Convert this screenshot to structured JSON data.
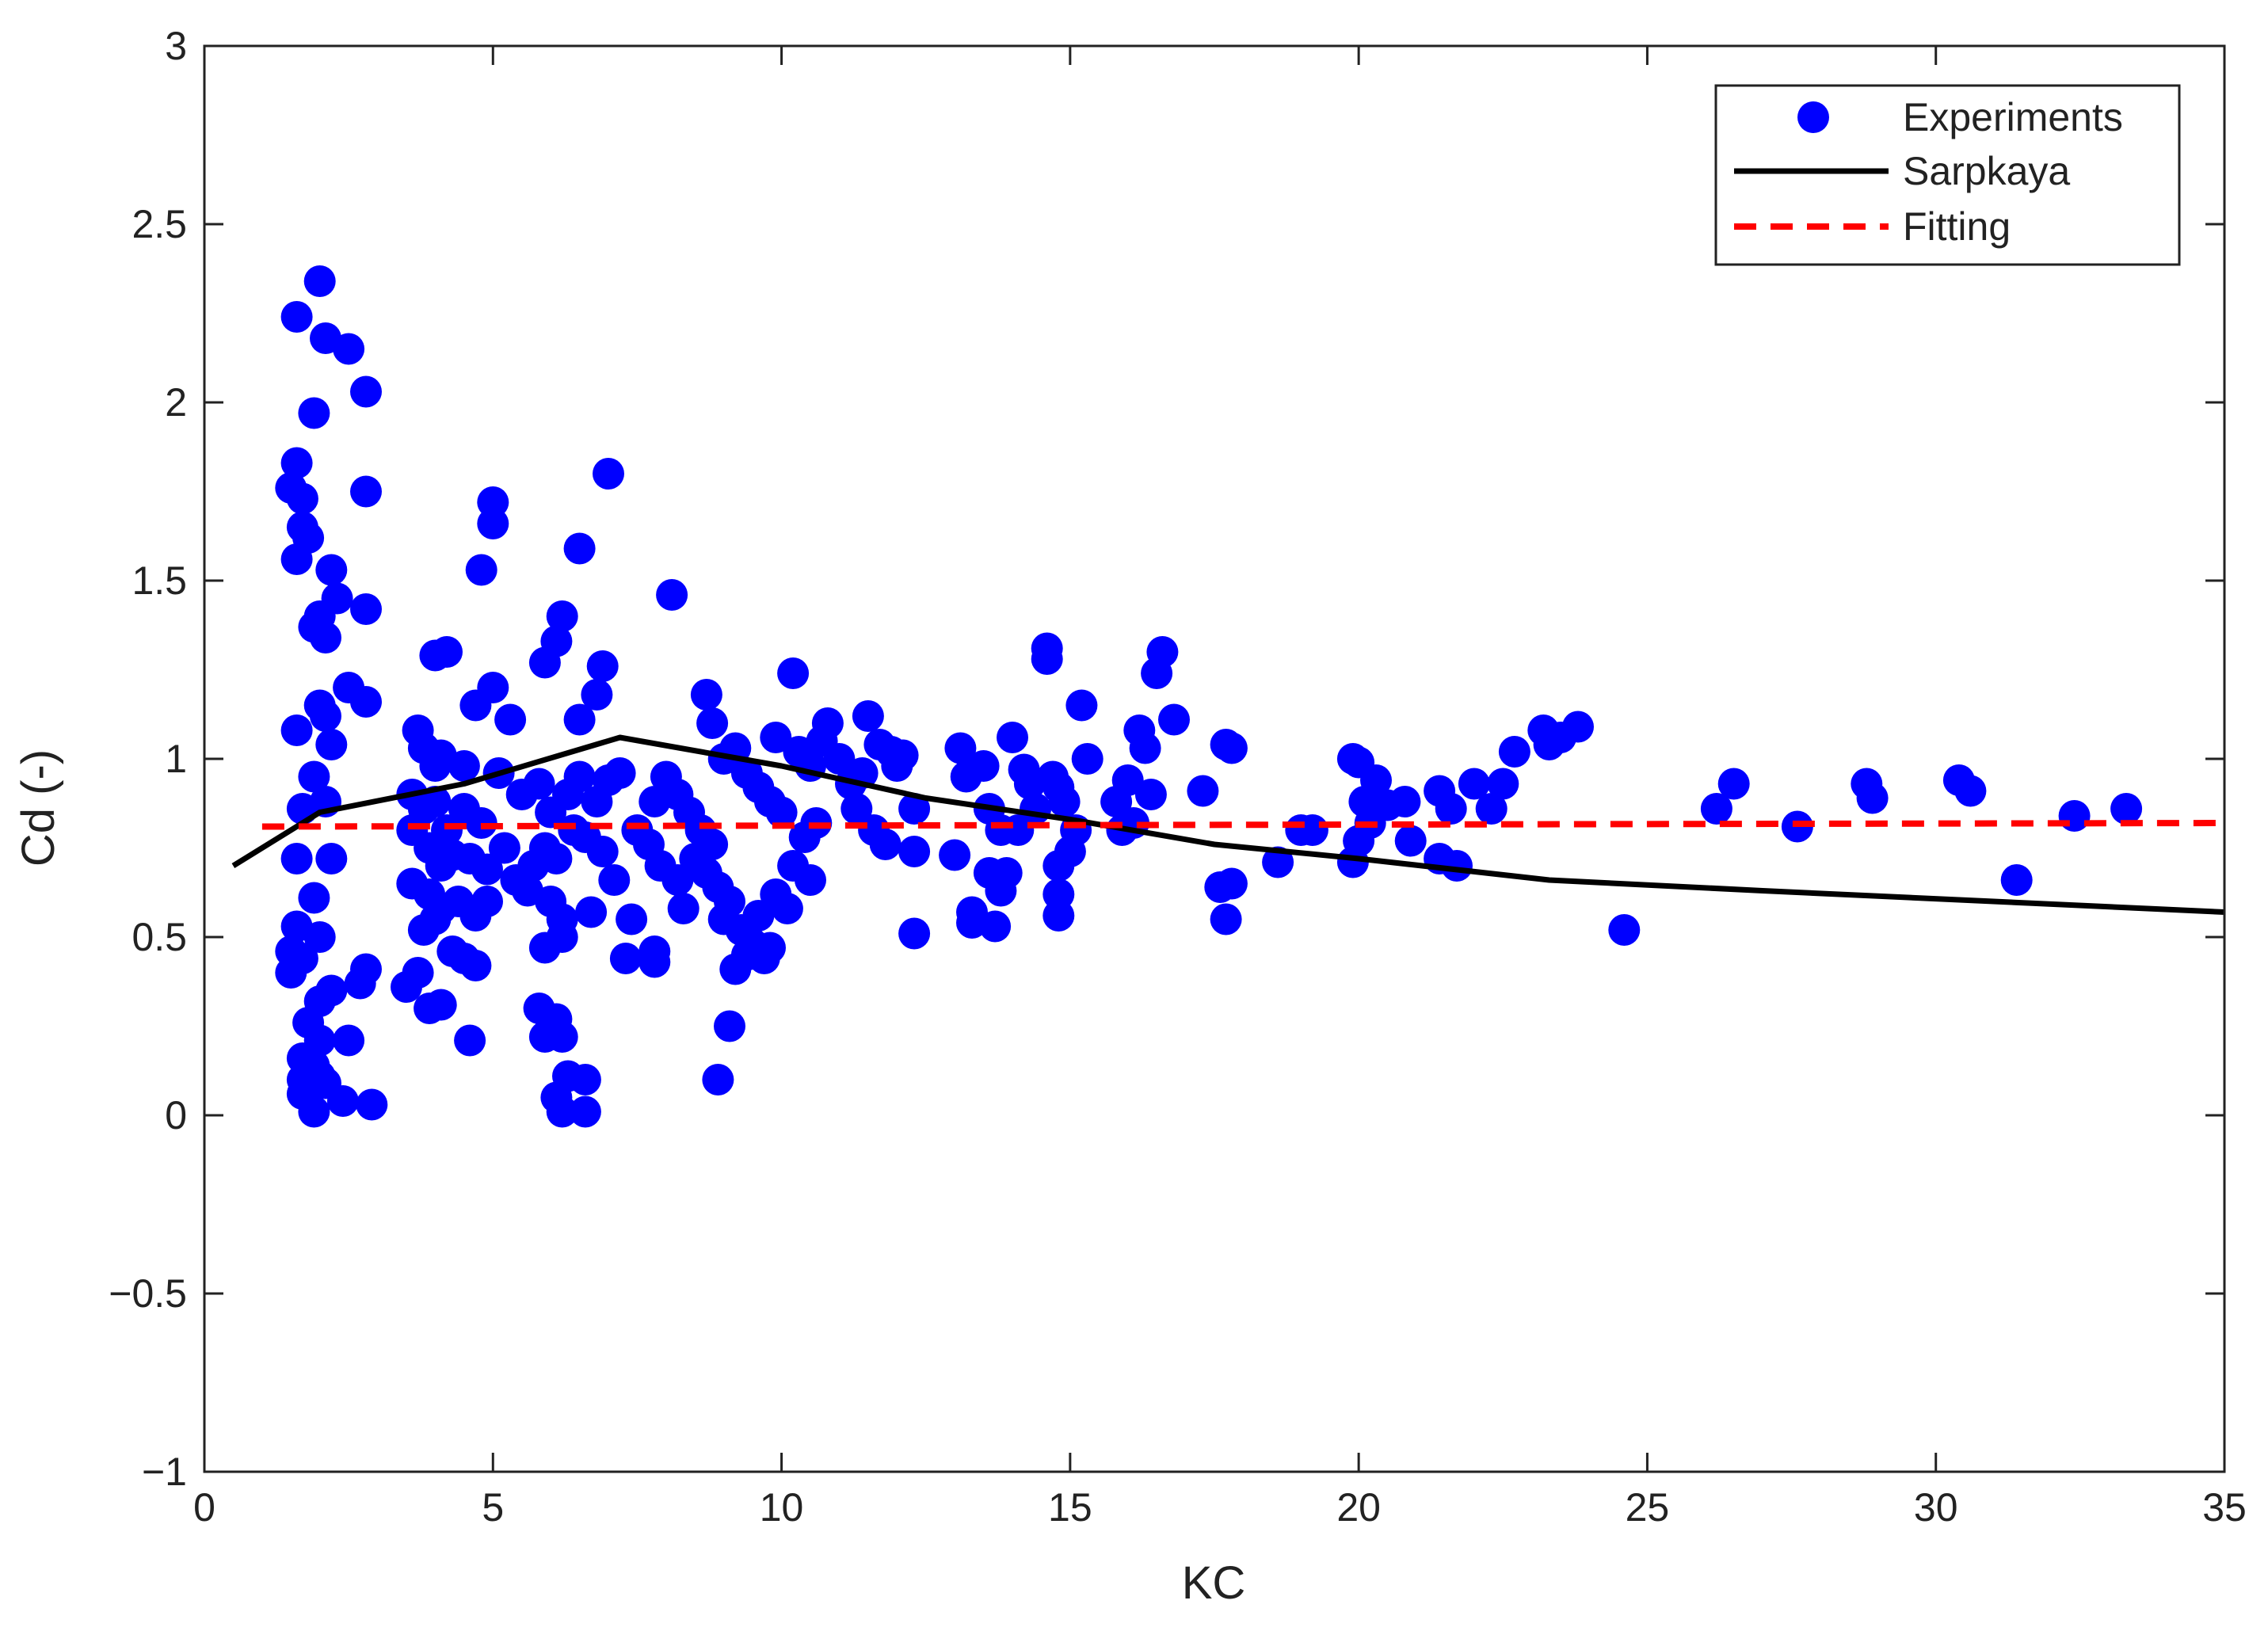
{
  "chart_data": {
    "type": "scatter",
    "title": "",
    "xlabel": "KC",
    "ylabel": "Cd (-)",
    "xlim": [
      0,
      35
    ],
    "ylim": [
      -1,
      3
    ],
    "grid": false,
    "legend_position": "top-right",
    "x_ticks": [
      0,
      5,
      10,
      15,
      20,
      25,
      30,
      35
    ],
    "x_tick_labels": [
      "0",
      "5",
      "10",
      "15",
      "20",
      "25",
      "30",
      "35"
    ],
    "y_ticks": [
      -1,
      -0.5,
      0,
      0.5,
      1,
      1.5,
      2,
      2.5,
      3
    ],
    "y_tick_labels": [
      "−1",
      "−0.5",
      "0",
      "0.5",
      "1",
      "1.5",
      "2",
      "2.5",
      "3"
    ],
    "series": [
      {
        "name": "Experiments",
        "kind": "scatter",
        "color": "#0000ff",
        "points": [
          [
            1.6,
            2.24
          ],
          [
            2.0,
            2.34
          ],
          [
            2.5,
            2.15
          ],
          [
            2.1,
            2.18
          ],
          [
            2.8,
            2.03
          ],
          [
            1.9,
            1.97
          ],
          [
            1.6,
            1.83
          ],
          [
            1.5,
            1.76
          ],
          [
            1.7,
            1.73
          ],
          [
            2.8,
            1.75
          ],
          [
            1.7,
            1.65
          ],
          [
            1.8,
            1.62
          ],
          [
            1.6,
            1.56
          ],
          [
            2.2,
            1.53
          ],
          [
            2.3,
            1.45
          ],
          [
            2.0,
            1.4
          ],
          [
            1.9,
            1.37
          ],
          [
            2.1,
            1.34
          ],
          [
            2.8,
            1.42
          ],
          [
            2.5,
            1.2
          ],
          [
            2.0,
            1.15
          ],
          [
            1.6,
            1.08
          ],
          [
            2.2,
            1.04
          ],
          [
            2.1,
            1.12
          ],
          [
            2.8,
            1.16
          ],
          [
            1.9,
            0.95
          ],
          [
            2.1,
            0.88
          ],
          [
            1.7,
            0.86
          ],
          [
            1.6,
            0.72
          ],
          [
            2.2,
            0.72
          ],
          [
            1.9,
            0.61
          ],
          [
            2.0,
            0.5
          ],
          [
            1.6,
            0.53
          ],
          [
            1.5,
            0.46
          ],
          [
            1.7,
            0.44
          ],
          [
            1.5,
            0.4
          ],
          [
            2.8,
            0.41
          ],
          [
            2.7,
            0.37
          ],
          [
            2.2,
            0.35
          ],
          [
            2.0,
            0.32
          ],
          [
            1.8,
            0.26
          ],
          [
            2.0,
            0.21
          ],
          [
            2.5,
            0.21
          ],
          [
            1.7,
            0.16
          ],
          [
            1.9,
            0.14
          ],
          [
            2.0,
            0.11
          ],
          [
            1.7,
            0.06
          ],
          [
            2.1,
            0.09
          ],
          [
            2.4,
            0.04
          ],
          [
            1.9,
            0.01
          ],
          [
            2.9,
            0.03
          ],
          [
            1.7,
            0.1
          ],
          [
            5.0,
            1.72
          ],
          [
            5.0,
            1.66
          ],
          [
            4.8,
            1.53
          ],
          [
            7.0,
            1.8
          ],
          [
            6.5,
            1.59
          ],
          [
            8.1,
            1.46
          ],
          [
            6.2,
            1.4
          ],
          [
            6.1,
            1.33
          ],
          [
            5.9,
            1.27
          ],
          [
            4.0,
            1.29
          ],
          [
            4.2,
            1.3
          ],
          [
            6.9,
            1.26
          ],
          [
            4.7,
            1.15
          ],
          [
            5.0,
            1.2
          ],
          [
            5.3,
            1.11
          ],
          [
            6.8,
            1.18
          ],
          [
            6.5,
            1.11
          ],
          [
            3.7,
            1.08
          ],
          [
            3.8,
            1.03
          ],
          [
            4.0,
            0.98
          ],
          [
            4.1,
            1.01
          ],
          [
            4.5,
            0.98
          ],
          [
            3.6,
            0.9
          ],
          [
            3.8,
            0.86
          ],
          [
            4.0,
            0.88
          ],
          [
            4.2,
            0.8
          ],
          [
            4.5,
            0.86
          ],
          [
            4.8,
            0.82
          ],
          [
            5.1,
            0.96
          ],
          [
            5.5,
            0.9
          ],
          [
            5.8,
            0.93
          ],
          [
            6.0,
            0.85
          ],
          [
            6.3,
            0.9
          ],
          [
            6.5,
            0.95
          ],
          [
            6.8,
            0.88
          ],
          [
            7.0,
            0.94
          ],
          [
            7.2,
            0.96
          ],
          [
            3.6,
            0.8
          ],
          [
            3.9,
            0.75
          ],
          [
            4.1,
            0.7
          ],
          [
            4.3,
            0.73
          ],
          [
            4.6,
            0.72
          ],
          [
            4.9,
            0.69
          ],
          [
            5.2,
            0.75
          ],
          [
            5.4,
            0.66
          ],
          [
            5.7,
            0.7
          ],
          [
            5.9,
            0.75
          ],
          [
            6.1,
            0.72
          ],
          [
            6.4,
            0.8
          ],
          [
            6.6,
            0.78
          ],
          [
            6.9,
            0.74
          ],
          [
            7.1,
            0.66
          ],
          [
            3.6,
            0.65
          ],
          [
            3.9,
            0.62
          ],
          [
            4.1,
            0.58
          ],
          [
            4.4,
            0.6
          ],
          [
            4.7,
            0.56
          ],
          [
            4.9,
            0.6
          ],
          [
            5.6,
            0.63
          ],
          [
            6.0,
            0.6
          ],
          [
            6.2,
            0.55
          ],
          [
            6.7,
            0.57
          ],
          [
            3.8,
            0.52
          ],
          [
            4.0,
            0.55
          ],
          [
            4.3,
            0.46
          ],
          [
            4.5,
            0.44
          ],
          [
            4.7,
            0.42
          ],
          [
            5.9,
            0.47
          ],
          [
            6.2,
            0.5
          ],
          [
            3.5,
            0.36
          ],
          [
            3.7,
            0.4
          ],
          [
            3.9,
            0.3
          ],
          [
            4.1,
            0.31
          ],
          [
            4.6,
            0.21
          ],
          [
            5.8,
            0.3
          ],
          [
            6.1,
            0.27
          ],
          [
            5.9,
            0.22
          ],
          [
            6.2,
            0.22
          ],
          [
            6.3,
            0.11
          ],
          [
            6.6,
            0.1
          ],
          [
            6.1,
            0.05
          ],
          [
            6.2,
            0.01
          ],
          [
            6.6,
            0.01
          ],
          [
            7.4,
            0.55
          ],
          [
            7.3,
            0.44
          ],
          [
            7.8,
            0.46
          ],
          [
            7.8,
            0.43
          ],
          [
            7.5,
            0.8
          ],
          [
            7.7,
            0.76
          ],
          [
            7.9,
            0.7
          ],
          [
            8.2,
            0.66
          ],
          [
            8.3,
            0.58
          ],
          [
            7.8,
            0.88
          ],
          [
            8.0,
            0.95
          ],
          [
            8.2,
            0.9
          ],
          [
            8.4,
            0.85
          ],
          [
            8.6,
            0.8
          ],
          [
            8.8,
            0.76
          ],
          [
            8.5,
            0.72
          ],
          [
            8.7,
            0.68
          ],
          [
            8.9,
            0.64
          ],
          [
            9.1,
            0.6
          ],
          [
            9.0,
            0.55
          ],
          [
            9.3,
            0.52
          ],
          [
            9.5,
            0.48
          ],
          [
            9.7,
            0.44
          ],
          [
            9.8,
            0.47
          ],
          [
            9.2,
            0.41
          ],
          [
            9.4,
            0.45
          ],
          [
            8.7,
            1.18
          ],
          [
            8.8,
            1.1
          ],
          [
            9.0,
            1.0
          ],
          [
            9.2,
            1.03
          ],
          [
            9.4,
            0.96
          ],
          [
            9.6,
            0.92
          ],
          [
            9.8,
            0.88
          ],
          [
            10.0,
            0.85
          ],
          [
            10.2,
            1.24
          ],
          [
            9.9,
            1.06
          ],
          [
            10.3,
            1.02
          ],
          [
            10.5,
            0.98
          ],
          [
            10.7,
            1.05
          ],
          [
            10.8,
            1.1
          ],
          [
            11.0,
            1.0
          ],
          [
            11.2,
            0.93
          ],
          [
            11.4,
            0.96
          ],
          [
            11.5,
            1.12
          ],
          [
            11.7,
            1.04
          ],
          [
            11.9,
            1.02
          ],
          [
            12.0,
            0.98
          ],
          [
            12.1,
            1.01
          ],
          [
            11.3,
            0.86
          ],
          [
            11.6,
            0.8
          ],
          [
            11.8,
            0.76
          ],
          [
            10.4,
            0.78
          ],
          [
            10.6,
            0.82
          ],
          [
            10.2,
            0.7
          ],
          [
            10.5,
            0.66
          ],
          [
            10.1,
            0.58
          ],
          [
            9.9,
            0.62
          ],
          [
            9.6,
            0.56
          ],
          [
            9.1,
            0.25
          ],
          [
            8.9,
            0.1
          ],
          [
            12.3,
            0.74
          ],
          [
            12.3,
            0.86
          ],
          [
            12.3,
            0.51
          ],
          [
            13.0,
            0.73
          ],
          [
            13.1,
            1.03
          ],
          [
            13.2,
            0.95
          ],
          [
            13.3,
            0.57
          ],
          [
            13.3,
            0.54
          ],
          [
            13.5,
            0.98
          ],
          [
            13.6,
            0.68
          ],
          [
            13.8,
            0.63
          ],
          [
            13.7,
            0.53
          ],
          [
            13.9,
            0.68
          ],
          [
            14.0,
            1.06
          ],
          [
            14.2,
            0.97
          ],
          [
            14.3,
            0.93
          ],
          [
            14.4,
            0.86
          ],
          [
            14.6,
            1.31
          ],
          [
            14.6,
            1.28
          ],
          [
            14.7,
            0.95
          ],
          [
            14.8,
            0.92
          ],
          [
            14.9,
            0.88
          ],
          [
            14.8,
            0.7
          ],
          [
            14.8,
            0.62
          ],
          [
            14.8,
            0.56
          ],
          [
            15.0,
            0.74
          ],
          [
            15.1,
            0.8
          ],
          [
            15.2,
            1.15
          ],
          [
            15.3,
            1.0
          ],
          [
            14.1,
            0.8
          ],
          [
            13.6,
            0.86
          ],
          [
            13.8,
            0.8
          ],
          [
            15.8,
            0.88
          ],
          [
            15.9,
            0.8
          ],
          [
            16.0,
            0.94
          ],
          [
            16.1,
            0.82
          ],
          [
            16.2,
            1.08
          ],
          [
            16.3,
            1.03
          ],
          [
            16.4,
            0.9
          ],
          [
            16.5,
            1.24
          ],
          [
            16.6,
            1.3
          ],
          [
            16.8,
            1.11
          ],
          [
            17.3,
            0.91
          ],
          [
            17.6,
            0.64
          ],
          [
            17.7,
            1.04
          ],
          [
            17.8,
            1.03
          ],
          [
            17.8,
            0.65
          ],
          [
            17.7,
            0.55
          ],
          [
            18.6,
            0.71
          ],
          [
            19.0,
            0.8
          ],
          [
            19.2,
            0.8
          ],
          [
            19.9,
            1.0
          ],
          [
            20.0,
            0.99
          ],
          [
            20.1,
            0.88
          ],
          [
            20.3,
            0.94
          ],
          [
            20.2,
            0.82
          ],
          [
            20.0,
            0.77
          ],
          [
            19.9,
            0.71
          ],
          [
            20.5,
            0.87
          ],
          [
            20.8,
            0.88
          ],
          [
            20.9,
            0.77
          ],
          [
            21.4,
            0.91
          ],
          [
            21.6,
            0.86
          ],
          [
            21.4,
            0.72
          ],
          [
            21.7,
            0.7
          ],
          [
            22.0,
            0.93
          ],
          [
            22.3,
            0.86
          ],
          [
            22.5,
            0.93
          ],
          [
            22.7,
            1.02
          ],
          [
            23.2,
            1.08
          ],
          [
            23.3,
            1.04
          ],
          [
            23.5,
            1.06
          ],
          [
            23.8,
            1.09
          ],
          [
            24.6,
            0.52
          ],
          [
            26.2,
            0.86
          ],
          [
            26.5,
            0.93
          ],
          [
            27.6,
            0.81
          ],
          [
            28.8,
            0.93
          ],
          [
            28.9,
            0.89
          ],
          [
            30.4,
            0.94
          ],
          [
            30.6,
            0.91
          ],
          [
            31.4,
            0.66
          ],
          [
            32.4,
            0.84
          ],
          [
            33.3,
            0.86
          ]
        ]
      },
      {
        "name": "Sarpkaya",
        "kind": "line",
        "color": "#000000",
        "points": [
          [
            0.5,
            0.7
          ],
          [
            2.0,
            0.85
          ],
          [
            4.5,
            0.93
          ],
          [
            7.2,
            1.06
          ],
          [
            10.0,
            0.98
          ],
          [
            12.5,
            0.89
          ],
          [
            15.0,
            0.83
          ],
          [
            17.5,
            0.76
          ],
          [
            20.0,
            0.72
          ],
          [
            23.3,
            0.66
          ],
          [
            27.0,
            0.63
          ],
          [
            31.0,
            0.6
          ],
          [
            35.0,
            0.57
          ]
        ]
      },
      {
        "name": "Fitting",
        "kind": "dashed-line",
        "color": "#ff0000",
        "points": [
          [
            1.0,
            0.81
          ],
          [
            35.0,
            0.82
          ]
        ]
      }
    ]
  }
}
